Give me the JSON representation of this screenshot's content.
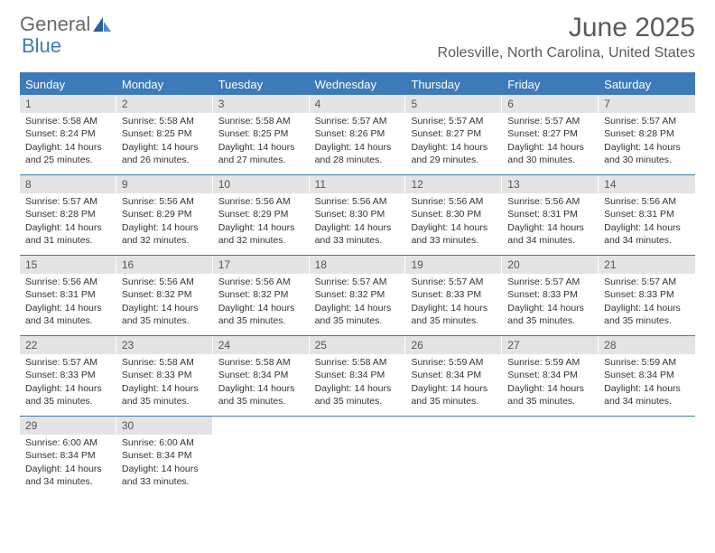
{
  "logo": {
    "text1": "General",
    "text2": "Blue"
  },
  "title": "June 2025",
  "location": "Rolesville, North Carolina, United States",
  "colors": {
    "accent": "#3d7ab8",
    "headerText": "#ffffff",
    "dayNumBg": "#e4e4e4",
    "bodyText": "#333333",
    "titleText": "#5a5a5a"
  },
  "dayNames": [
    "Sunday",
    "Monday",
    "Tuesday",
    "Wednesday",
    "Thursday",
    "Friday",
    "Saturday"
  ],
  "weeks": [
    [
      {
        "n": "1",
        "sr": "5:58 AM",
        "ss": "8:24 PM",
        "dl": "14 hours and 25 minutes."
      },
      {
        "n": "2",
        "sr": "5:58 AM",
        "ss": "8:25 PM",
        "dl": "14 hours and 26 minutes."
      },
      {
        "n": "3",
        "sr": "5:58 AM",
        "ss": "8:25 PM",
        "dl": "14 hours and 27 minutes."
      },
      {
        "n": "4",
        "sr": "5:57 AM",
        "ss": "8:26 PM",
        "dl": "14 hours and 28 minutes."
      },
      {
        "n": "5",
        "sr": "5:57 AM",
        "ss": "8:27 PM",
        "dl": "14 hours and 29 minutes."
      },
      {
        "n": "6",
        "sr": "5:57 AM",
        "ss": "8:27 PM",
        "dl": "14 hours and 30 minutes."
      },
      {
        "n": "7",
        "sr": "5:57 AM",
        "ss": "8:28 PM",
        "dl": "14 hours and 30 minutes."
      }
    ],
    [
      {
        "n": "8",
        "sr": "5:57 AM",
        "ss": "8:28 PM",
        "dl": "14 hours and 31 minutes."
      },
      {
        "n": "9",
        "sr": "5:56 AM",
        "ss": "8:29 PM",
        "dl": "14 hours and 32 minutes."
      },
      {
        "n": "10",
        "sr": "5:56 AM",
        "ss": "8:29 PM",
        "dl": "14 hours and 32 minutes."
      },
      {
        "n": "11",
        "sr": "5:56 AM",
        "ss": "8:30 PM",
        "dl": "14 hours and 33 minutes."
      },
      {
        "n": "12",
        "sr": "5:56 AM",
        "ss": "8:30 PM",
        "dl": "14 hours and 33 minutes."
      },
      {
        "n": "13",
        "sr": "5:56 AM",
        "ss": "8:31 PM",
        "dl": "14 hours and 34 minutes."
      },
      {
        "n": "14",
        "sr": "5:56 AM",
        "ss": "8:31 PM",
        "dl": "14 hours and 34 minutes."
      }
    ],
    [
      {
        "n": "15",
        "sr": "5:56 AM",
        "ss": "8:31 PM",
        "dl": "14 hours and 34 minutes."
      },
      {
        "n": "16",
        "sr": "5:56 AM",
        "ss": "8:32 PM",
        "dl": "14 hours and 35 minutes."
      },
      {
        "n": "17",
        "sr": "5:56 AM",
        "ss": "8:32 PM",
        "dl": "14 hours and 35 minutes."
      },
      {
        "n": "18",
        "sr": "5:57 AM",
        "ss": "8:32 PM",
        "dl": "14 hours and 35 minutes."
      },
      {
        "n": "19",
        "sr": "5:57 AM",
        "ss": "8:33 PM",
        "dl": "14 hours and 35 minutes."
      },
      {
        "n": "20",
        "sr": "5:57 AM",
        "ss": "8:33 PM",
        "dl": "14 hours and 35 minutes."
      },
      {
        "n": "21",
        "sr": "5:57 AM",
        "ss": "8:33 PM",
        "dl": "14 hours and 35 minutes."
      }
    ],
    [
      {
        "n": "22",
        "sr": "5:57 AM",
        "ss": "8:33 PM",
        "dl": "14 hours and 35 minutes."
      },
      {
        "n": "23",
        "sr": "5:58 AM",
        "ss": "8:33 PM",
        "dl": "14 hours and 35 minutes."
      },
      {
        "n": "24",
        "sr": "5:58 AM",
        "ss": "8:34 PM",
        "dl": "14 hours and 35 minutes."
      },
      {
        "n": "25",
        "sr": "5:58 AM",
        "ss": "8:34 PM",
        "dl": "14 hours and 35 minutes."
      },
      {
        "n": "26",
        "sr": "5:59 AM",
        "ss": "8:34 PM",
        "dl": "14 hours and 35 minutes."
      },
      {
        "n": "27",
        "sr": "5:59 AM",
        "ss": "8:34 PM",
        "dl": "14 hours and 35 minutes."
      },
      {
        "n": "28",
        "sr": "5:59 AM",
        "ss": "8:34 PM",
        "dl": "14 hours and 34 minutes."
      }
    ],
    [
      {
        "n": "29",
        "sr": "6:00 AM",
        "ss": "8:34 PM",
        "dl": "14 hours and 34 minutes."
      },
      {
        "n": "30",
        "sr": "6:00 AM",
        "ss": "8:34 PM",
        "dl": "14 hours and 33 minutes."
      },
      {
        "empty": true
      },
      {
        "empty": true
      },
      {
        "empty": true
      },
      {
        "empty": true
      },
      {
        "empty": true
      }
    ]
  ],
  "labels": {
    "sunrise": "Sunrise:",
    "sunset": "Sunset:",
    "daylight": "Daylight:"
  }
}
